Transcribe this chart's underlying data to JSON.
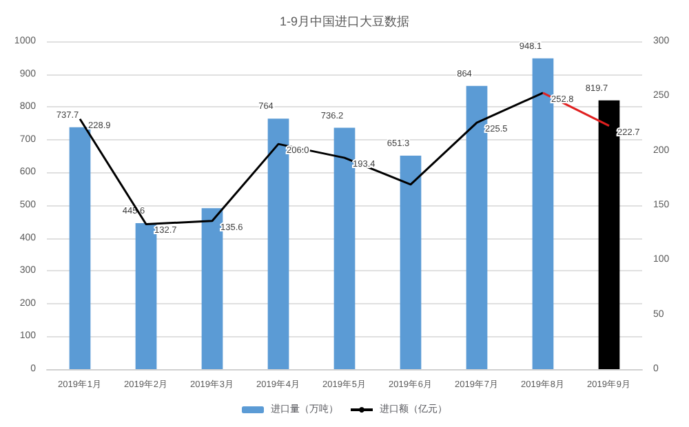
{
  "chart_data": {
    "type": "bar",
    "title": "1-9月中国进口大豆数据",
    "categories": [
      "2019年1月",
      "2019年2月",
      "2019年3月",
      "2019年4月",
      "2019年5月",
      "2019年6月",
      "2019年7月",
      "2019年8月",
      "2019年9月"
    ],
    "series": [
      {
        "name": "进口量（万吨）",
        "color": "#5b9bd5",
        "colors": [
          "#5b9bd5",
          "#5b9bd5",
          "#5b9bd5",
          "#5b9bd5",
          "#5b9bd5",
          "#5b9bd5",
          "#5b9bd5",
          "#5b9bd5",
          "#000000"
        ],
        "values": [
          737.7,
          445.6,
          491,
          764,
          736.2,
          651.3,
          864,
          948.1,
          819.7
        ],
        "value_labels": [
          "737.7",
          "445.6",
          null,
          "764",
          "736.2",
          "651.3",
          "864",
          "948.1",
          "819.7"
        ]
      },
      {
        "name": "进口额（亿元）",
        "type": "line",
        "axis": "y2",
        "color": "#000000",
        "values": [
          228.9,
          132.7,
          135.6,
          206.0,
          193.4,
          169,
          225.5,
          252.8,
          null
        ],
        "value_labels": [
          "228.9",
          "132.7",
          "135.6",
          "206.0",
          "193.4",
          null,
          "225.5",
          "252.8",
          null
        ]
      },
      {
        "type": "line",
        "axis": "y2",
        "color": "#e02020",
        "values": [
          null,
          null,
          null,
          null,
          null,
          null,
          null,
          252.8,
          222.7
        ],
        "value_labels": [
          null,
          null,
          null,
          null,
          null,
          null,
          null,
          null,
          "222.7"
        ]
      }
    ],
    "ylim": [
      0,
      1000
    ],
    "yticks": [
      0,
      100,
      200,
      300,
      400,
      500,
      600,
      700,
      800,
      900,
      1000
    ],
    "y2lim": [
      0,
      300
    ],
    "y2ticks": [
      0,
      50,
      100,
      150,
      200,
      250,
      300
    ],
    "grid": "y",
    "legend": "bottom",
    "marker": "none",
    "line_style": "solid"
  }
}
